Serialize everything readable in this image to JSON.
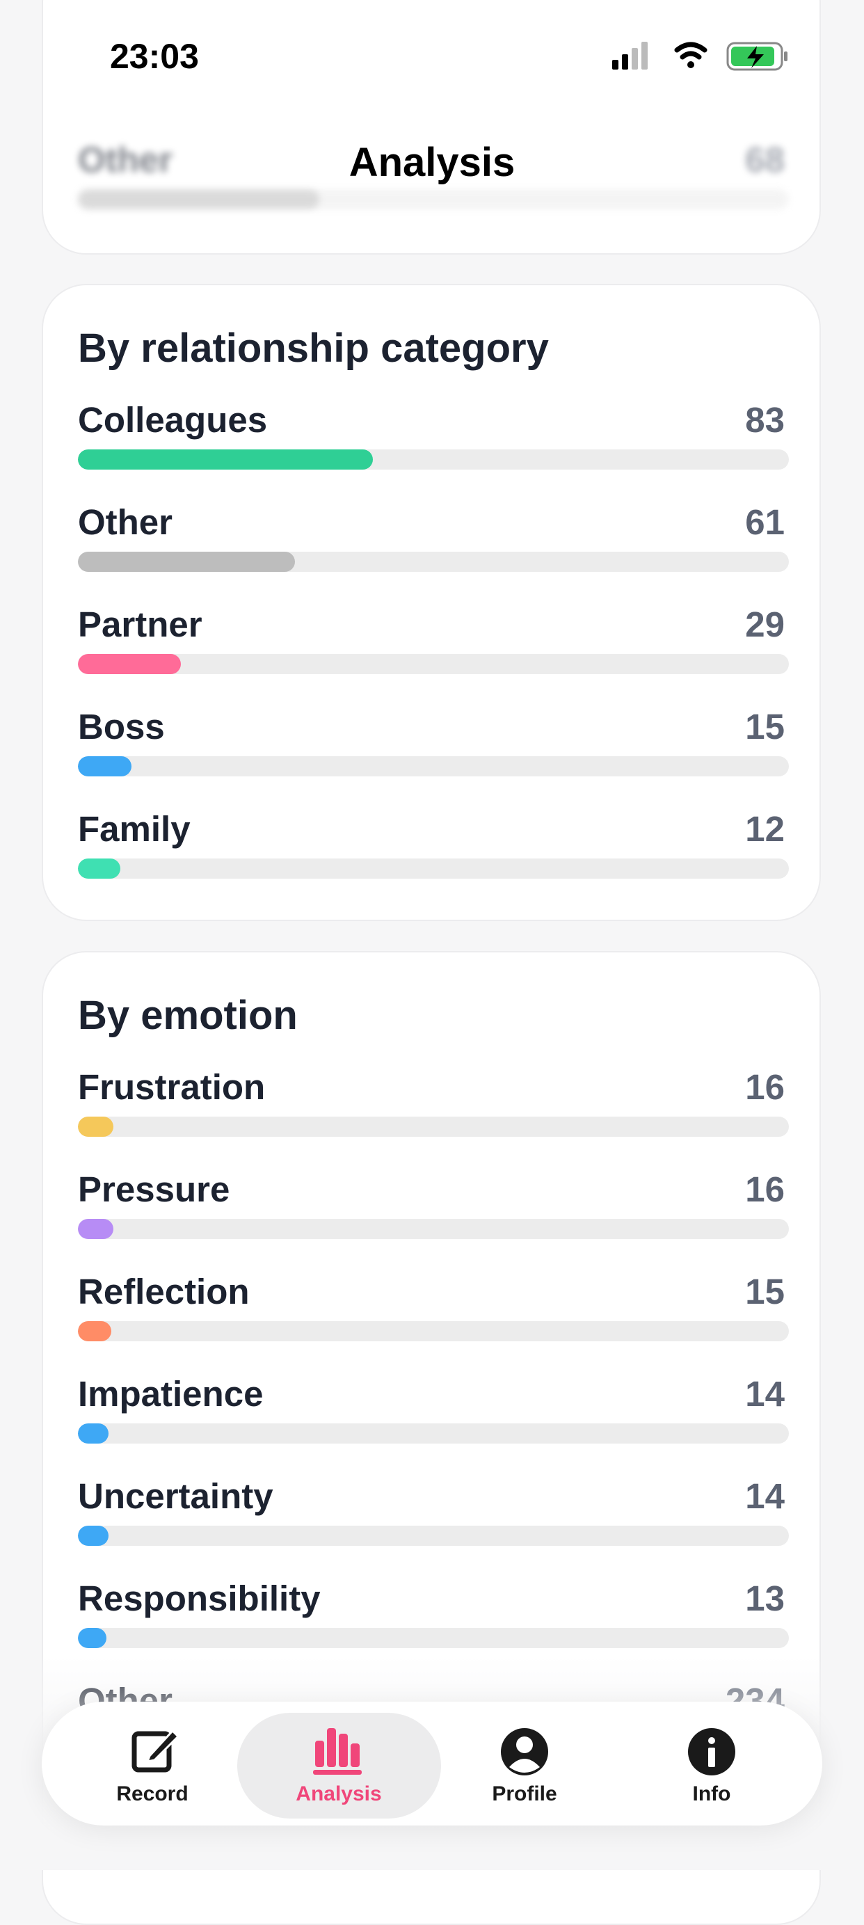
{
  "status_bar": {
    "time": "23:03"
  },
  "header": {
    "title": "Analysis"
  },
  "top_card": {
    "rows": [
      {
        "label": "Other",
        "value": 68,
        "color": "#bdbdbd"
      }
    ]
  },
  "cards": [
    {
      "title": "By relationship category",
      "rows": [
        {
          "label": "Colleagues",
          "value": 83,
          "color": "#2fcf95"
        },
        {
          "label": "Other",
          "value": 61,
          "color": "#bdbdbd"
        },
        {
          "label": "Partner",
          "value": 29,
          "color": "#ff6b98"
        },
        {
          "label": "Boss",
          "value": 15,
          "color": "#3ea8f5"
        },
        {
          "label": "Family",
          "value": 12,
          "color": "#3fe0b2"
        }
      ]
    },
    {
      "title": "By emotion",
      "rows": [
        {
          "label": "Frustration",
          "value": 16,
          "color": "#f5c85a"
        },
        {
          "label": "Pressure",
          "value": 16,
          "color": "#b78cf5"
        },
        {
          "label": "Reflection",
          "value": 15,
          "color": "#ff8c66"
        },
        {
          "label": "Impatience",
          "value": 14,
          "color": "#3ea8f5"
        },
        {
          "label": "Uncertainty",
          "value": 14,
          "color": "#3ea8f5"
        },
        {
          "label": "Responsibility",
          "value": 13,
          "color": "#3ea8f5"
        },
        {
          "label": "Other",
          "value": 234,
          "color": "#bdbdbd"
        }
      ]
    }
  ],
  "nav": {
    "tabs": [
      "Record",
      "Analysis",
      "Profile",
      "Info"
    ],
    "active": "Analysis"
  }
}
